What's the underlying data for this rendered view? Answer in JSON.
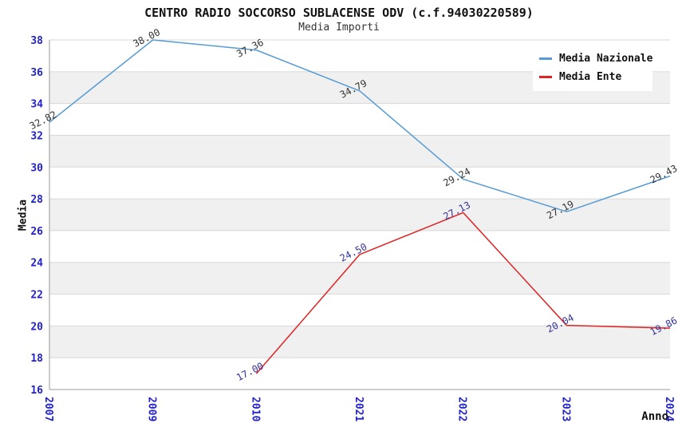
{
  "title": "CENTRO RADIO SOCCORSO SUBLACENSE ODV (c.f.94030220589)",
  "subtitle": "Media Importi",
  "chart_data": {
    "type": "line",
    "categories": [
      "2007",
      "2009",
      "2010",
      "2021",
      "2022",
      "2023",
      "2024"
    ],
    "series": [
      {
        "name": "Media Nazionale",
        "color": "#579BD5",
        "label_color": "#333333",
        "values": [
          32.82,
          38.0,
          37.36,
          34.79,
          29.24,
          27.19,
          29.43
        ]
      },
      {
        "name": "Media Ente",
        "color": "#E02222",
        "label_color": "#333399",
        "values": [
          null,
          null,
          17.0,
          24.5,
          27.13,
          20.04,
          19.86
        ]
      }
    ],
    "xlabel": "Anno",
    "ylabel": "Media",
    "ylim": [
      16,
      38
    ],
    "ytick_step": 2,
    "grid": "horizontal-bands",
    "legend_position": "top-right",
    "band_colors": [
      "#ffffff",
      "#f0f0f0"
    ],
    "gridline_color": "#d8d8d8",
    "axis_line_color": "#999999",
    "tick_label_color": "#2222CC",
    "point_label_format": "0.00"
  }
}
